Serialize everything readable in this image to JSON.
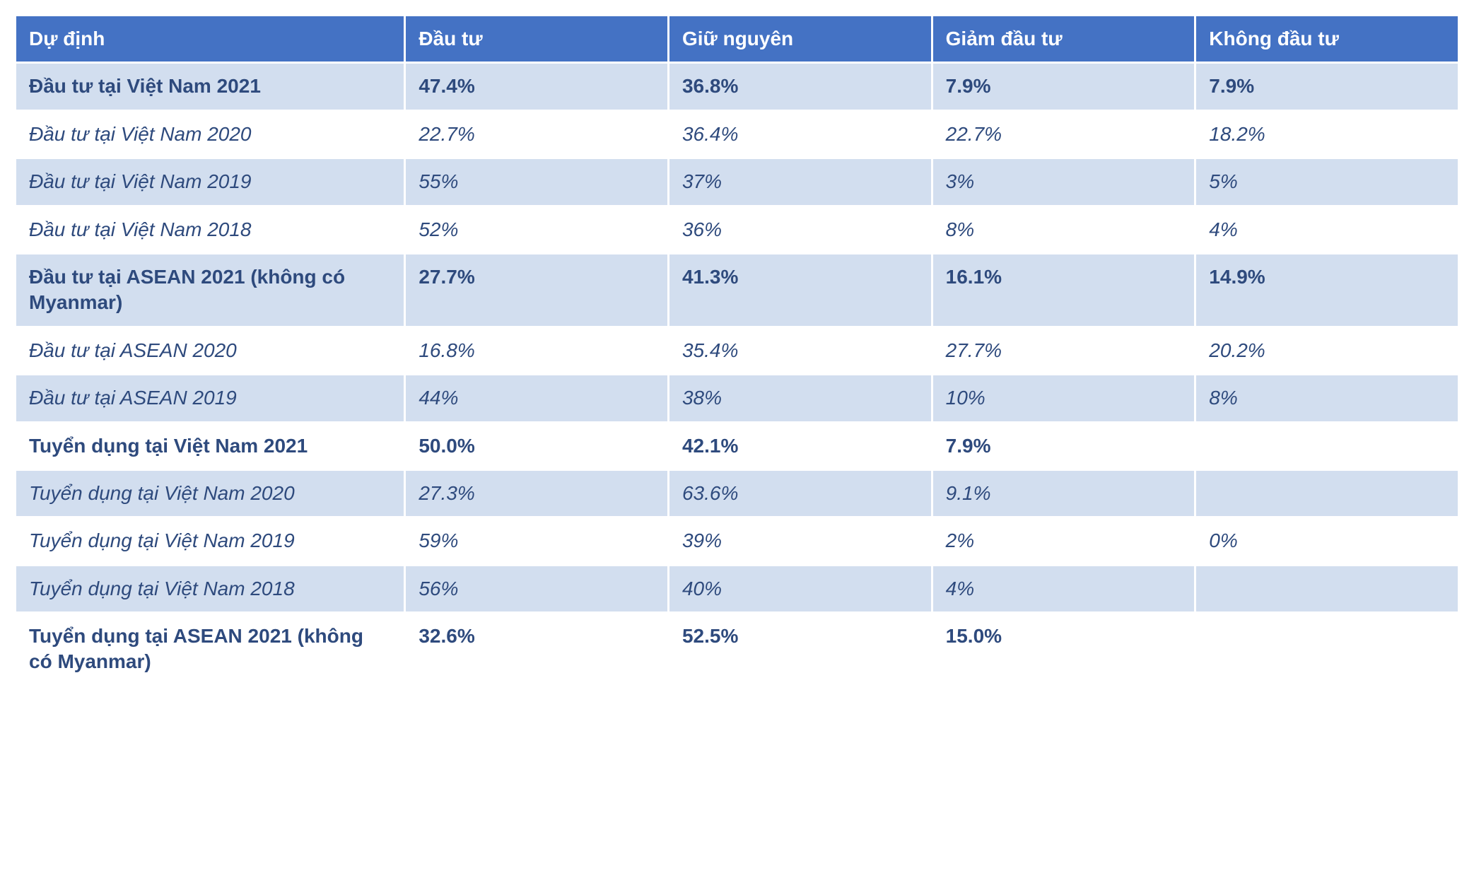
{
  "table": {
    "header_bg": "#4472c4",
    "header_fg": "#ffffff",
    "zebra_a_bg": "#d2deef",
    "zebra_b_bg": "#ffffff",
    "text_color": "#2e4a7d",
    "border_color": "#ffffff",
    "font_size_pt": 21,
    "columns": [
      {
        "key": "label",
        "header": "Dự định",
        "width_pct": 27
      },
      {
        "key": "c1",
        "header": "Đầu tư",
        "width_pct": 18.25
      },
      {
        "key": "c2",
        "header": "Giữ nguyên",
        "width_pct": 18.25
      },
      {
        "key": "c3",
        "header": "Giảm đầu tư",
        "width_pct": 18.25
      },
      {
        "key": "c4",
        "header": "Không đầu tư",
        "width_pct": 18.25
      }
    ],
    "rows": [
      {
        "style": "bold",
        "zebra": "a",
        "label": "Đầu tư tại Việt Nam 2021",
        "c1": "47.4%",
        "c2": "36.8%",
        "c3": "7.9%",
        "c4": "7.9%"
      },
      {
        "style": "italic",
        "zebra": "b",
        "label": "Đầu tư tại Việt Nam 2020",
        "c1": "22.7%",
        "c2": "36.4%",
        "c3": "22.7%",
        "c4": "18.2%"
      },
      {
        "style": "italic",
        "zebra": "a",
        "label": "Đầu tư tại Việt Nam 2019",
        "c1": "55%",
        "c2": "37%",
        "c3": "3%",
        "c4": "5%"
      },
      {
        "style": "italic",
        "zebra": "b",
        "label": "Đầu tư tại Việt Nam 2018",
        "c1": "52%",
        "c2": "36%",
        "c3": "8%",
        "c4": "4%"
      },
      {
        "style": "bold",
        "zebra": "a",
        "label": "Đầu tư tại ASEAN 2021 (không có Myanmar)",
        "c1": "27.7%",
        "c2": "41.3%",
        "c3": "16.1%",
        "c4": "14.9%"
      },
      {
        "style": "italic",
        "zebra": "b",
        "label": "Đầu tư tại ASEAN 2020",
        "c1": "16.8%",
        "c2": "35.4%",
        "c3": "27.7%",
        "c4": "20.2%"
      },
      {
        "style": "italic",
        "zebra": "a",
        "label": "Đầu tư tại ASEAN 2019",
        "c1": "44%",
        "c2": "38%",
        "c3": "10%",
        "c4": "8%"
      },
      {
        "style": "bold",
        "zebra": "b",
        "label": "Tuyển dụng tại Việt Nam 2021",
        "c1": "50.0%",
        "c2": "42.1%",
        "c3": "7.9%",
        "c4": ""
      },
      {
        "style": "italic",
        "zebra": "a",
        "label": "Tuyển dụng tại Việt Nam 2020",
        "c1": "27.3%",
        "c2": "63.6%",
        "c3": "9.1%",
        "c4": ""
      },
      {
        "style": "italic",
        "zebra": "b",
        "label": "Tuyển dụng tại Việt Nam 2019",
        "c1": "59%",
        "c2": "39%",
        "c3": "2%",
        "c4": "0%"
      },
      {
        "style": "italic",
        "zebra": "a",
        "label": "Tuyển dụng tại Việt Nam 2018",
        "c1": "56%",
        "c2": "40%",
        "c3": "4%",
        "c4": ""
      },
      {
        "style": "bold",
        "zebra": "b",
        "label": "Tuyển dụng tại ASEAN 2021 (không có Myanmar)",
        "c1": "32.6%",
        "c2": "52.5%",
        "c3": "15.0%",
        "c4": ""
      }
    ]
  }
}
